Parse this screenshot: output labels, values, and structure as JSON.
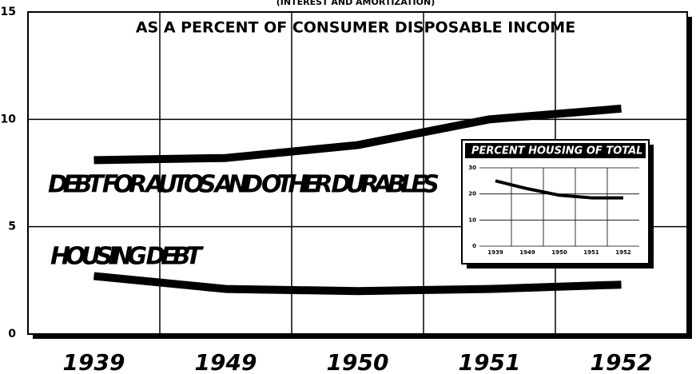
{
  "chart_data": [
    {
      "type": "line",
      "title": "(INTEREST AND AMORTIZATION)",
      "subtitle": "AS A PERCENT OF CONSUMER DISPOSABLE INCOME",
      "categories": [
        "1939",
        "1949",
        "1950",
        "1951",
        "1952"
      ],
      "series": [
        {
          "name": "DEBT FOR AUTOS AND OTHER DURABLES",
          "color": "#000000",
          "values": [
            8.1,
            8.2,
            8.8,
            10.0,
            10.5
          ]
        },
        {
          "name": "HOUSING DEBT",
          "color": "#000000",
          "values": [
            2.7,
            2.1,
            2.0,
            2.1,
            2.3
          ]
        }
      ],
      "ylim": [
        0,
        15
      ],
      "yticks": [
        0,
        5,
        10,
        15
      ],
      "grid": true
    },
    {
      "type": "line",
      "title": "PERCENT HOUSING OF TOTAL",
      "categories": [
        "1939",
        "1949",
        "1950",
        "1951",
        "1952"
      ],
      "series": [
        {
          "name": null,
          "color": "#000000",
          "values": [
            25,
            22,
            19.5,
            18.5,
            18.5
          ]
        }
      ],
      "ylim": [
        0,
        30
      ],
      "yticks": [
        0,
        10,
        20,
        30
      ],
      "grid": true
    }
  ]
}
